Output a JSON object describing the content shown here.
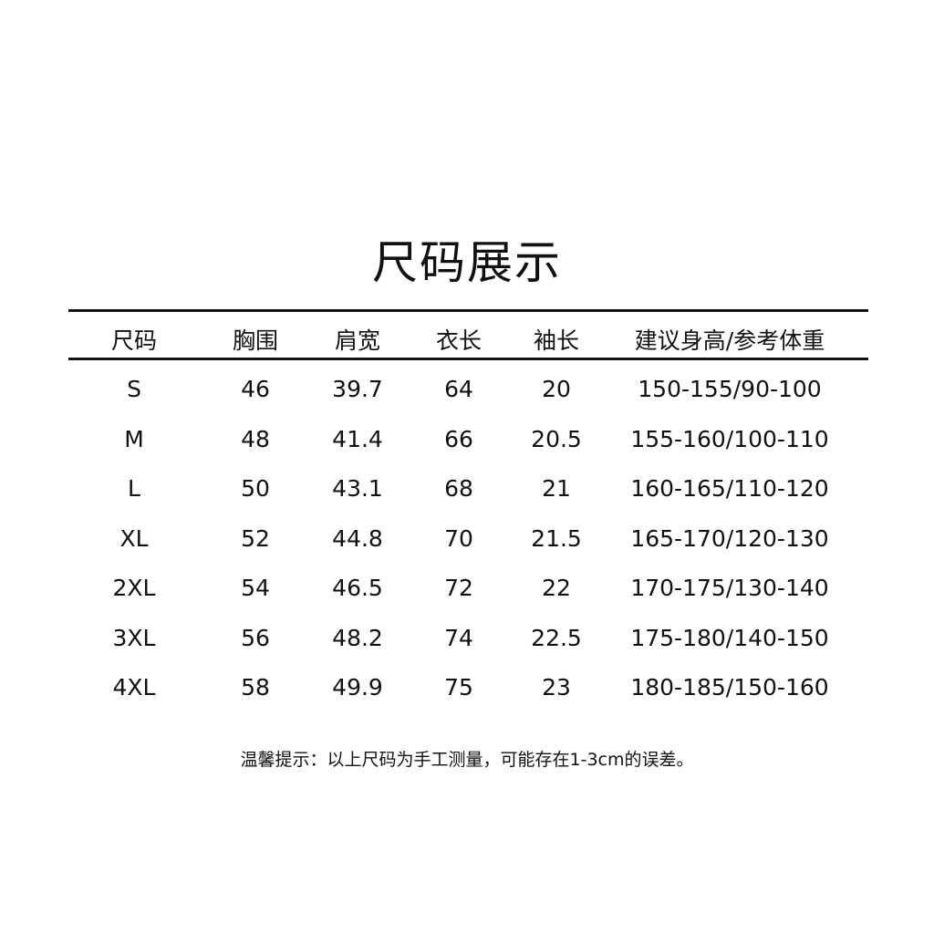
{
  "title": "尺码展示",
  "headers": [
    "尺码",
    "胸围",
    "肩宽",
    "衣长",
    "袖长",
    "建议身高/参考体重"
  ],
  "rows": [
    [
      "S",
      "46",
      "39.7",
      "64",
      "20",
      "150-155/90-100"
    ],
    [
      "M",
      "48",
      "41.4",
      "66",
      "20.5",
      "155-160/100-110"
    ],
    [
      "L",
      "50",
      "43.1",
      "68",
      "21",
      "160-165/110-120"
    ],
    [
      "XL",
      "52",
      "44.8",
      "70",
      "21.5",
      "165-170/120-130"
    ],
    [
      "2XL",
      "54",
      "46.5",
      "72",
      "22",
      "170-175/130-140"
    ],
    [
      "3XL",
      "56",
      "48.2",
      "74",
      "22.5",
      "175-180/140-150"
    ],
    [
      "4XL",
      "58",
      "49.9",
      "75",
      "23",
      "180-185/150-160"
    ]
  ],
  "note": "温馨提示：以上尺码为手工测量，可能存在1-3cm的误差。"
}
